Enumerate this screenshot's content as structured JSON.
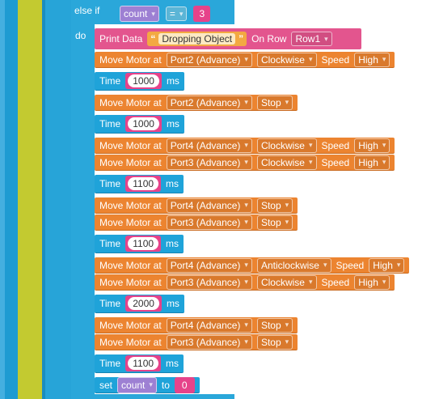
{
  "condition": {
    "keyword": "else if",
    "variable": "count",
    "operator": "=",
    "value": 3
  },
  "do_label": "do",
  "print": {
    "label": "Print Data",
    "text": "Dropping Object",
    "row_label": "On Row",
    "row": "Row1"
  },
  "statements": [
    {
      "label": "Move Motor at",
      "port": "Port2 (Advance)",
      "direction": "Clockwise",
      "speed_label": "Speed",
      "speed": "High"
    },
    {
      "label": "Time",
      "value": 1000,
      "unit": "ms"
    },
    {
      "label": "Move Motor at",
      "port": "Port2 (Advance)",
      "direction": "Stop"
    },
    {
      "label": "Time",
      "value": 1000,
      "unit": "ms"
    },
    {
      "label": "Move Motor at",
      "port": "Port4 (Advance)",
      "direction": "Clockwise",
      "speed_label": "Speed",
      "speed": "High"
    },
    {
      "label": "Move Motor at",
      "port": "Port3 (Advance)",
      "direction": "Clockwise",
      "speed_label": "Speed",
      "speed": "High"
    },
    {
      "label": "Time",
      "value": 1100,
      "unit": "ms"
    },
    {
      "label": "Move Motor at",
      "port": "Port4 (Advance)",
      "direction": "Stop"
    },
    {
      "label": "Move Motor at",
      "port": "Port3 (Advance)",
      "direction": "Stop"
    },
    {
      "label": "Time",
      "value": 1100,
      "unit": "ms"
    },
    {
      "label": "Move Motor at",
      "port": "Port4 (Advance)",
      "direction": "Anticlockwise",
      "speed_label": "Speed",
      "speed": "High"
    },
    {
      "label": "Move Motor at",
      "port": "Port3 (Advance)",
      "direction": "Clockwise",
      "speed_label": "Speed",
      "speed": "High"
    },
    {
      "label": "Time",
      "value": 2000,
      "unit": "ms"
    },
    {
      "label": "Move Motor at",
      "port": "Port4 (Advance)",
      "direction": "Stop"
    },
    {
      "label": "Move Motor at",
      "port": "Port3 (Advance)",
      "direction": "Stop"
    },
    {
      "label": "Time",
      "value": 1100,
      "unit": "ms"
    },
    {
      "label": "set",
      "variable": "count",
      "to": "to",
      "value": 0
    }
  ]
}
